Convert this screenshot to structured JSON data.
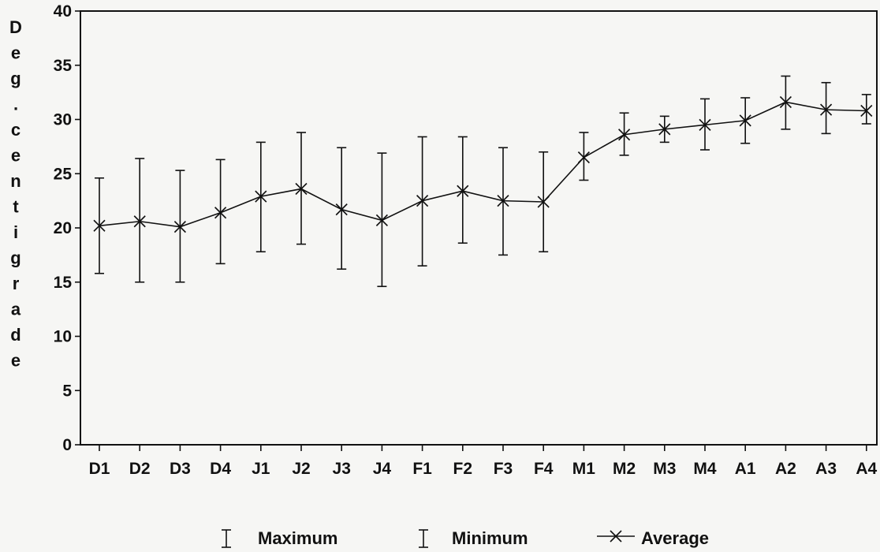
{
  "chart_data": {
    "type": "line",
    "title": "",
    "xlabel": "",
    "ylabel": "Deg.centigrade",
    "ylim": [
      0,
      40
    ],
    "yticks": [
      "0",
      "5",
      "10",
      "15",
      "20",
      "25",
      "30",
      "35",
      "40"
    ],
    "grid": false,
    "legend_position": "bottom-center",
    "categories": [
      "D1",
      "D2",
      "D3",
      "D4",
      "J1",
      "J2",
      "J3",
      "J4",
      "F1",
      "F2",
      "F3",
      "F4",
      "M1",
      "M2",
      "M3",
      "M4",
      "A1",
      "A2",
      "A3",
      "A4"
    ],
    "series": [
      {
        "name": "Maximum",
        "values": [
          24.6,
          26.4,
          25.3,
          26.3,
          27.9,
          28.8,
          27.4,
          26.9,
          28.4,
          28.4,
          27.4,
          27.0,
          28.8,
          30.6,
          30.3,
          31.9,
          32.0,
          34.0,
          33.4,
          32.3
        ]
      },
      {
        "name": "Minimum",
        "values": [
          15.8,
          15.0,
          15.0,
          16.7,
          17.8,
          18.5,
          16.2,
          14.6,
          16.5,
          18.6,
          17.5,
          17.8,
          24.4,
          26.7,
          27.9,
          27.2,
          27.8,
          29.1,
          28.7,
          29.6
        ]
      },
      {
        "name": "Average",
        "values": [
          20.2,
          20.6,
          20.1,
          21.4,
          22.9,
          23.6,
          21.7,
          20.7,
          22.5,
          23.4,
          22.5,
          22.4,
          26.5,
          28.6,
          29.1,
          29.5,
          29.9,
          31.6,
          30.9,
          30.8
        ]
      }
    ]
  },
  "legend": {
    "items": [
      {
        "label": "Maximum",
        "icon": "i-beam-icon"
      },
      {
        "label": "Minimum",
        "icon": "i-beam-icon"
      },
      {
        "label": "Average",
        "icon": "x-marker-line-icon"
      }
    ]
  },
  "colors": {
    "ink": "#111111",
    "background": "#f6f6f4"
  }
}
